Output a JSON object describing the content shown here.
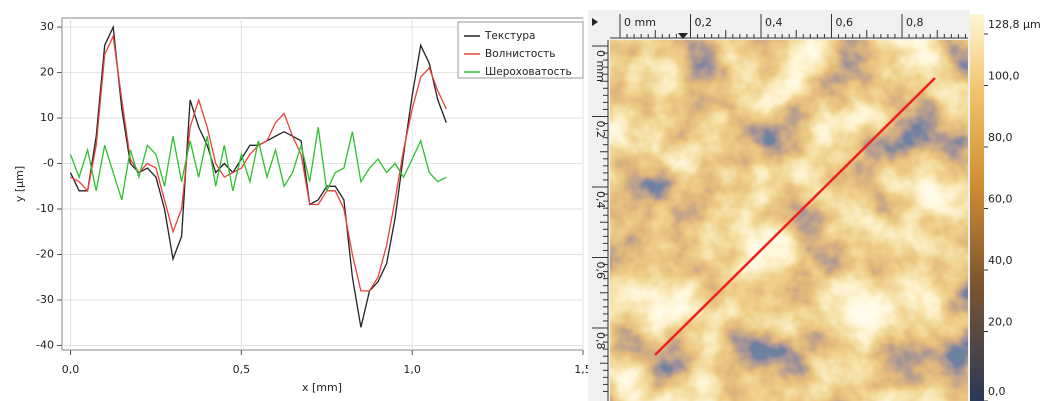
{
  "chart_data": {
    "type": "line",
    "xlabel": "x [mm]",
    "ylabel": "y [µm]",
    "x": [
      0,
      0.025,
      0.05,
      0.075,
      0.1,
      0.125,
      0.15,
      0.175,
      0.2,
      0.225,
      0.25,
      0.275,
      0.3,
      0.325,
      0.35,
      0.375,
      0.4,
      0.425,
      0.45,
      0.475,
      0.5,
      0.525,
      0.55,
      0.575,
      0.6,
      0.625,
      0.65,
      0.675,
      0.7,
      0.725,
      0.75,
      0.775,
      0.8,
      0.825,
      0.85,
      0.875,
      0.9,
      0.925,
      0.95,
      0.975,
      1.0,
      1.025,
      1.05,
      1.075,
      1.1
    ],
    "series": [
      {
        "name": "Текстура",
        "color": "#222222",
        "values": [
          -2,
          -6,
          -6,
          6,
          26,
          30,
          12,
          0,
          -2,
          -1,
          -3,
          -10,
          -21,
          -16,
          14,
          8,
          4,
          -2,
          0,
          -2,
          1,
          4,
          4,
          5,
          6,
          7,
          6,
          5,
          -9,
          -8,
          -5,
          -5,
          -8,
          -25,
          -36,
          -28,
          -26,
          -22,
          -12,
          2,
          15,
          26,
          22,
          14,
          9
        ]
      },
      {
        "name": "Волнистость",
        "color": "#e8403a",
        "values": [
          -3,
          -4,
          -6,
          4,
          24,
          28,
          14,
          1,
          -2,
          0,
          -1,
          -8,
          -15,
          -10,
          8,
          14,
          8,
          0,
          -3,
          -2,
          -1,
          2,
          4,
          5,
          9,
          11,
          6,
          2,
          -9,
          -9,
          -6,
          -6,
          -10,
          -20,
          -28,
          -28,
          -25,
          -18,
          -8,
          3,
          12,
          19,
          21,
          16,
          12
        ]
      },
      {
        "name": "Шероховатость",
        "color": "#2ec02e",
        "values": [
          2,
          -3,
          3,
          -6,
          4,
          -2,
          -8,
          3,
          -3,
          4,
          2,
          -5,
          6,
          -4,
          5,
          -3,
          6,
          -5,
          4,
          -6,
          2,
          -4,
          5,
          -3,
          3,
          -5,
          -2,
          4,
          -4,
          8,
          -6,
          -2,
          -1,
          7,
          -4,
          -1,
          1,
          -2,
          0,
          -3,
          1,
          5,
          -2,
          -4,
          -3
        ]
      }
    ],
    "xlim": [
      -0.025,
      1.5
    ],
    "xticks": [
      {
        "value": 0,
        "label": "0,0"
      },
      {
        "value": 0.5,
        "label": "0,5"
      },
      {
        "value": 1.0,
        "label": "1,0"
      },
      {
        "value": 1.5,
        "label": "1,5"
      }
    ],
    "ylim": [
      -41,
      32
    ],
    "yticks": [
      30,
      20,
      10,
      {
        "value": 0,
        "label": "-0"
      },
      -10,
      -20,
      -30,
      -40
    ],
    "grid": true,
    "legend": "upper right"
  },
  "image_panel": {
    "x_ruler": [
      "0 mm",
      "0,2",
      "0,4",
      "0,6",
      "0,8"
    ],
    "y_ruler": [
      "0 mm",
      "0,2",
      "0,4",
      "0,6",
      "0,8"
    ],
    "colorbar_labels": [
      "128,8 µm",
      "100,0",
      "80,0",
      "60,0",
      "40,0",
      "20,0",
      "0,0"
    ]
  }
}
